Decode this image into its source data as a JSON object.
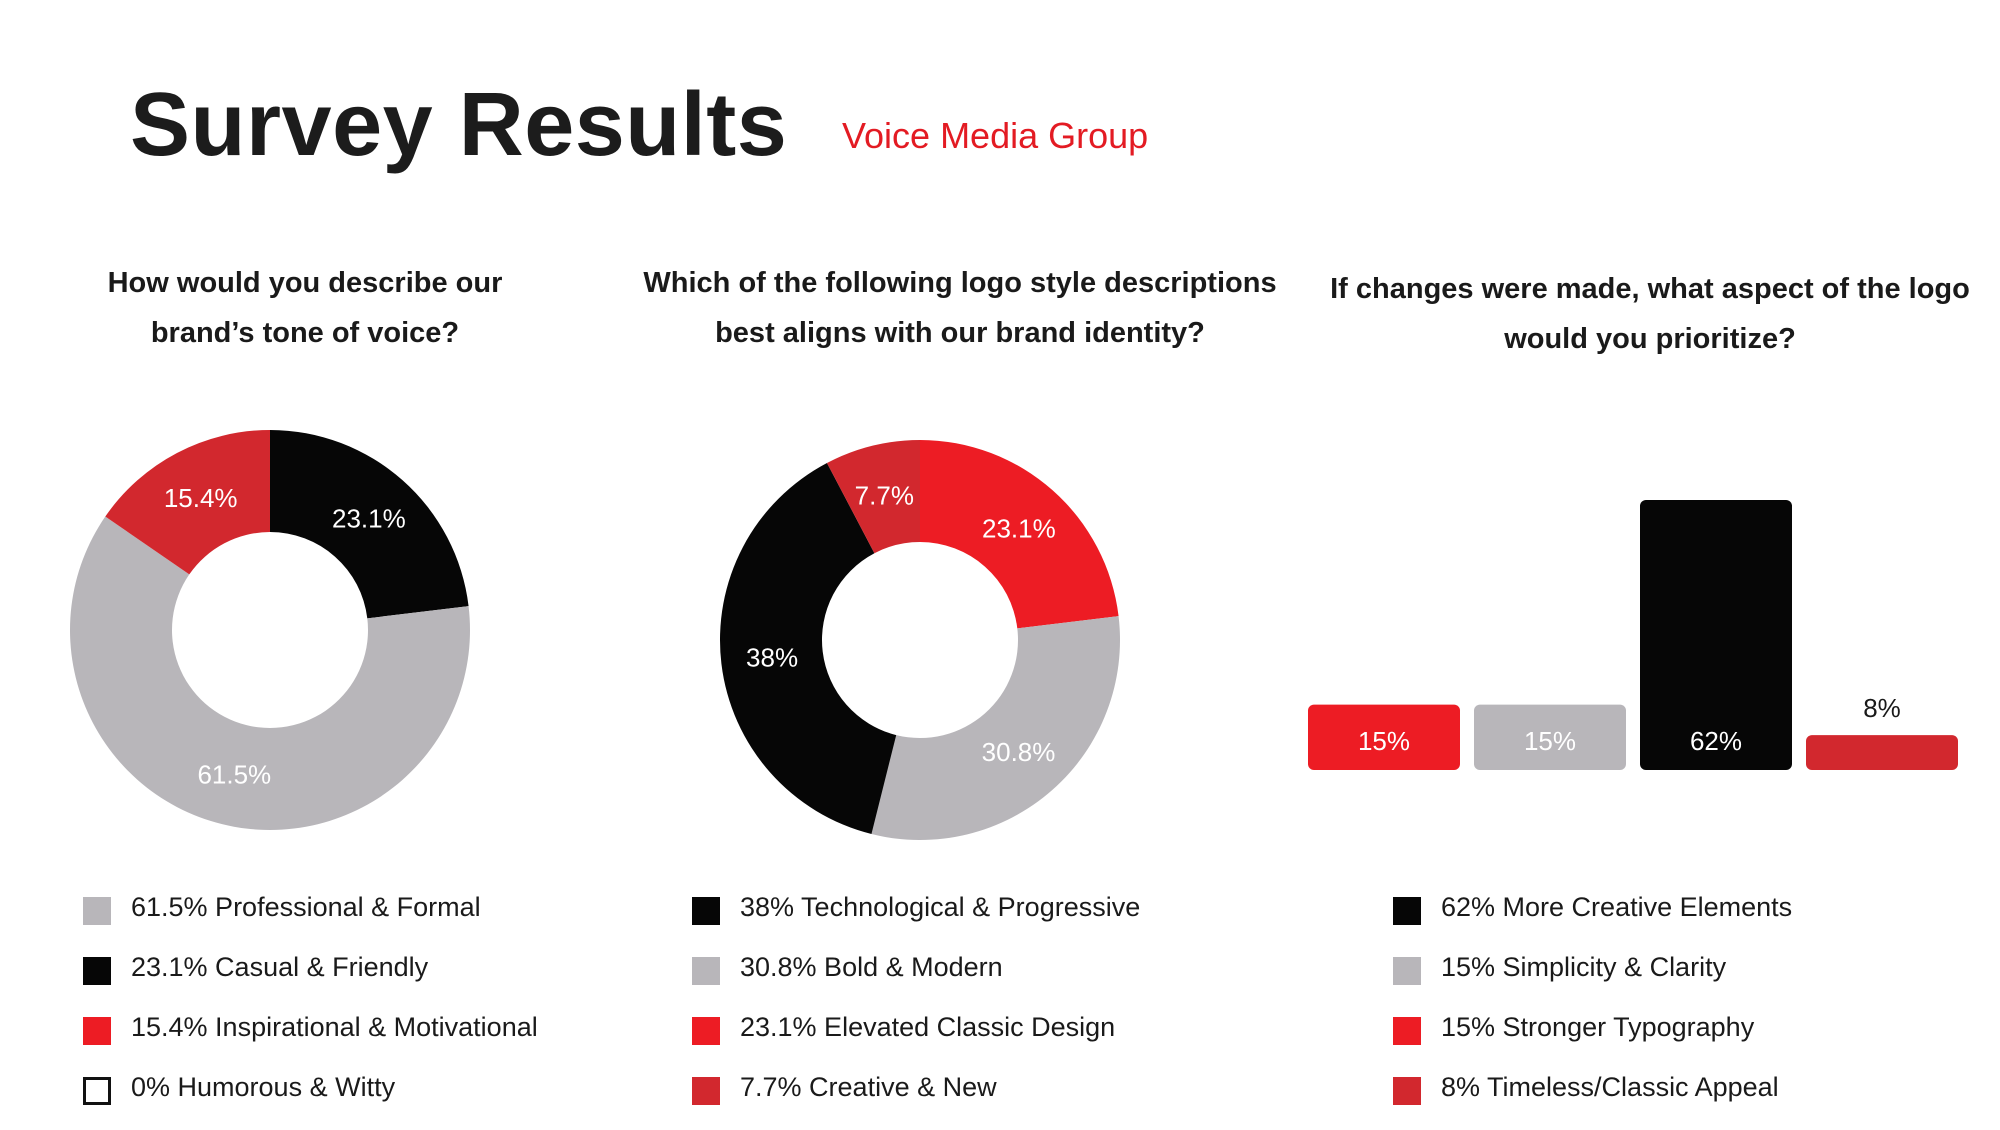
{
  "header": {
    "title": "Survey Results",
    "subtitle": "Voice Media Group"
  },
  "colors": {
    "red": "#ed1c24",
    "dark_red": "#d2282e",
    "black": "#060606",
    "gray": "#b8b6ba",
    "white": "#ffffff",
    "accent": "#e31b23"
  },
  "chart_data": [
    {
      "type": "pie",
      "style": "donut",
      "title": "How would you describe our brand’s tone of voice?",
      "slices": [
        {
          "label": "Casual & Friendly",
          "value": 23.1,
          "display": "23.1%",
          "color": "#060606",
          "legend": "23.1% Casual & Friendly"
        },
        {
          "label": "Professional & Formal",
          "value": 61.5,
          "display": "61.5%",
          "color": "#b8b6ba",
          "legend": "61.5% Professional & Formal"
        },
        {
          "label": "Inspirational & Motivational",
          "value": 15.4,
          "display": "15.4%",
          "color": "#d2282e",
          "legend": "15.4% Inspirational & Motivational"
        },
        {
          "label": "Humorous & Witty",
          "value": 0,
          "display": "",
          "color": "#ffffff",
          "legend": "0% Humorous & Witty"
        }
      ],
      "legend_order": [
        1,
        0,
        2,
        3
      ],
      "legend_colors": [
        "#b8b6ba",
        "#060606",
        "#ed1c24",
        "#ffffff"
      ]
    },
    {
      "type": "pie",
      "style": "donut",
      "title": "Which of the following logo style descriptions best aligns with our brand identity?",
      "slices": [
        {
          "label": "Elevated Classic Design",
          "value": 23.1,
          "display": "23.1%",
          "color": "#ed1c24",
          "legend": "23.1% Elevated Classic Design"
        },
        {
          "label": "Bold & Modern",
          "value": 30.8,
          "display": "30.8%",
          "color": "#b8b6ba",
          "legend": "30.8% Bold & Modern"
        },
        {
          "label": "Technological & Progressive",
          "value": 38.4,
          "display": "38%",
          "color": "#060606",
          "legend": "38% Technological & Progressive"
        },
        {
          "label": "Creative & New",
          "value": 7.7,
          "display": "7.7%",
          "color": "#d2282e",
          "legend": "7.7% Creative & New"
        }
      ],
      "legend_order": [
        2,
        1,
        0,
        3
      ],
      "legend_colors": [
        "#060606",
        "#b8b6ba",
        "#ed1c24",
        "#d2282e"
      ]
    },
    {
      "type": "bar",
      "title": "If changes were made, what aspect of the logo would you prioritize?",
      "categories": [
        "Stronger Typography",
        "Simplicity & Clarity",
        "More Creative Elements",
        "Timeless/Classic Appeal"
      ],
      "values": [
        15,
        15,
        62,
        8
      ],
      "display": [
        "15%",
        "15%",
        "62%",
        "8%"
      ],
      "colors": [
        "#ed1c24",
        "#b8b6ba",
        "#060606",
        "#d2282e"
      ],
      "ylim": [
        0,
        62
      ],
      "legend": [
        {
          "text": "62% More Creative Elements",
          "color": "#060606"
        },
        {
          "text": "15% Simplicity & Clarity",
          "color": "#b8b6ba"
        },
        {
          "text": "15% Stronger Typography",
          "color": "#ed1c24"
        },
        {
          "text": "8% Timeless/Classic Appeal",
          "color": "#d2282e"
        }
      ]
    }
  ]
}
